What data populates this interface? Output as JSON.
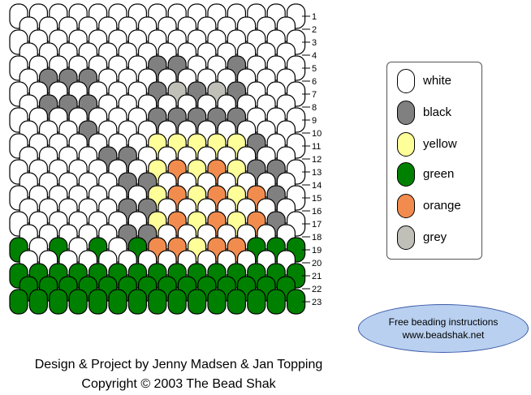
{
  "colors": {
    "W": "#ffffff",
    "K": "#808080",
    "Y": "#ffff99",
    "G": "#008000",
    "O": "#f28c4e",
    "R": "#c0c0b8"
  },
  "rows": [
    {
      "label": "1",
      "pattern": "WWWWWWWWWWWWWWWWWWWWWWWWWWWWW"
    },
    {
      "label": "2",
      "pattern": "WWWWWWWWWWWWWWWWWWWWWWWWWWWWW"
    },
    {
      "label": "3",
      "pattern": "WWWWWWWWWWWWWWWWWWWWWWWWWWWWW"
    },
    {
      "label": "4",
      "pattern": "WWWWWWWWWWWWWWKWWWWWWWKWWWWWW"
    },
    {
      "label": "5",
      "pattern": "WWWWWKWWWWWWWWKWKWWWWWKWWWWWW"
    },
    {
      "label": "6",
      "pattern": "WWWKWKWKWWWWWWKWKWKWKWKWWWWWW"
    },
    {
      "label": "7",
      "pattern": "WWWKWWWKWWWWWWKWRWKWRWKWWWWWW"
    },
    {
      "label": "8",
      "pattern": "WWWKWKWKWWWWWWKWKWKWKWKWWWWWW"
    },
    {
      "label": "9",
      "pattern": "WWWWWKWKWWWWWWKWKWKWKWKWWWWWW"
    },
    {
      "label": "10",
      "pattern": "WWWWWWWKWWWWWWYWYWYWYWKWWWWWW"
    },
    {
      "label": "11",
      "pattern": "WWWWWWWWWKWWWWYWYWYWYWYWKWWWW"
    },
    {
      "label": "12",
      "pattern": "WWWWWWWWWKWKWWYWYWGWYWYWKWWWW"
    },
    {
      "label": "13",
      "pattern": "WWWWWWWWWWWKWKYWOWYWOWYWKWKWW"
    },
    {
      "label": "14",
      "pattern": "WWWWWWWWWWWKWKOWYWOWYWOWKWKWW"
    },
    {
      "label": "15",
      "pattern": "WWWWWWWWWWWKWKYWOWYWOWYWOWKWW"
    },
    {
      "label": "16",
      "pattern": "WWWWWWWWWWWKWKOWYWOWYWOWKWKWW"
    },
    {
      "label": "17",
      "pattern": "WWWWWWWWWWWKWKYWOWYWOWYWOWKWW"
    },
    {
      "label": "18",
      "pattern": "WWWWWWWWWWWKWKOWYWOWYWOWKWKWW"
    },
    {
      "label": "19",
      "pattern": "GWWWGWWWGWWWGWOWOWYWOWOWGWGWG"
    },
    {
      "label": "20",
      "pattern": "GWGWGWGWGWGWGWOWOWOWOWOWGWGWG"
    },
    {
      "label": "21",
      "pattern": "GWGWGWGWGWGWGWGWGWGWGWGWGWGWG"
    },
    {
      "label": "22",
      "pattern": "GGGGGGGGGGGGGGGGGGGGGGGGGGGGG"
    },
    {
      "label": "23",
      "pattern": "GGGGGGGGGGGGGGGGGGGGGGGGGGGGG"
    }
  ],
  "legend": [
    {
      "label": "white",
      "color": "#ffffff"
    },
    {
      "label": "black",
      "color": "#808080"
    },
    {
      "label": "yellow",
      "color": "#ffff99"
    },
    {
      "label": "green",
      "color": "#008000"
    },
    {
      "label": "orange",
      "color": "#f28c4e"
    },
    {
      "label": "grey",
      "color": "#c0c0b8"
    }
  ],
  "info": {
    "line1": "Free beading instructions",
    "line2": "www.beadshak.net"
  },
  "credits": {
    "line1": "Design & Project by Jenny Madsen & Jan Topping",
    "line2": "Copyright © 2003 The Bead Shak"
  }
}
